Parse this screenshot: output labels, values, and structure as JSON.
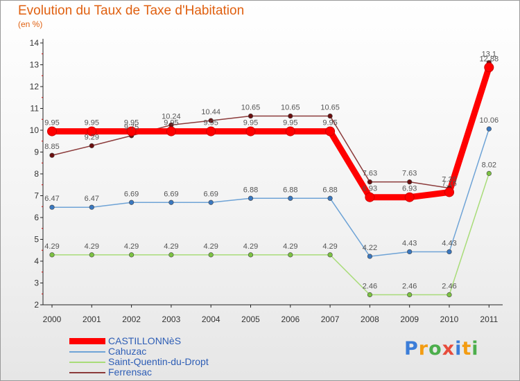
{
  "header": {
    "title": "Evolution du Taux de Taxe d'Habitation",
    "subtitle": "(en %)"
  },
  "logo": {
    "text": "Proxiti"
  },
  "colors": {
    "castillonnes": "#ff0000",
    "castillonnes_marker": "#d40000",
    "cahuzac": "#6ea3d6",
    "cahuzac_marker": "#3a78c0",
    "saint_quentin": "#a8dc78",
    "saint_quentin_marker": "#7cc242",
    "ferrensac": "#8b3a3a",
    "ferrensac_marker": "#6b0f0f"
  },
  "chart_data": {
    "type": "line",
    "title": "Evolution du Taux de Taxe d'Habitation",
    "subtitle": "(en %)",
    "xlabel": "",
    "ylabel": "",
    "ylim": [
      2,
      14
    ],
    "yticks": [
      "2",
      "3",
      "4",
      "5",
      "6",
      "7",
      "8",
      "9",
      "10",
      "11",
      "12",
      "13",
      "14"
    ],
    "categories": [
      "2000",
      "2001",
      "2002",
      "2003",
      "2004",
      "2005",
      "2006",
      "2007",
      "2008",
      "2009",
      "2010",
      "2011"
    ],
    "grid": false,
    "legend_position": "bottom-left",
    "series": [
      {
        "name": "CASTILLONNèS",
        "key": "castillonnes",
        "values": [
          9.95,
          9.95,
          9.95,
          9.95,
          9.95,
          9.95,
          9.95,
          9.95,
          6.93,
          6.93,
          7.16,
          12.88
        ],
        "labels": [
          "9.95",
          "9.95",
          "9.95",
          "9.95",
          "9.95",
          "9.95",
          "9.95",
          "9.95",
          "6.93",
          "6.93",
          "7.16",
          "12.88"
        ]
      },
      {
        "name": "Cahuzac",
        "key": "cahuzac",
        "values": [
          6.47,
          6.47,
          6.69,
          6.69,
          6.69,
          6.88,
          6.88,
          6.88,
          4.22,
          4.43,
          4.43,
          10.06
        ],
        "labels": [
          "6.47",
          "6.47",
          "6.69",
          "6.69",
          "6.69",
          "6.88",
          "6.88",
          "6.88",
          "4.22",
          "4.43",
          "4.43",
          "10.06"
        ]
      },
      {
        "name": "Saint-Quentin-du-Dropt",
        "key": "saint_quentin",
        "values": [
          4.29,
          4.29,
          4.29,
          4.29,
          4.29,
          4.29,
          4.29,
          4.29,
          2.46,
          2.46,
          2.46,
          8.02
        ],
        "labels": [
          "4.29",
          "4.29",
          "4.29",
          "4.29",
          "4.29",
          "4.29",
          "4.29",
          "4.29",
          "2.46",
          "2.46",
          "2.46",
          "8.02"
        ]
      },
      {
        "name": "Ferrensac",
        "key": "ferrensac",
        "values": [
          8.85,
          9.29,
          9.75,
          10.24,
          10.44,
          10.65,
          10.65,
          10.65,
          7.63,
          7.63,
          7.35,
          13.1
        ],
        "labels": [
          "8.85",
          "9.29",
          "9.75",
          "10.24",
          "10.44",
          "10.65",
          "10.65",
          "10.65",
          "7.63",
          "7.63",
          "7.35",
          "13.1"
        ]
      }
    ]
  }
}
